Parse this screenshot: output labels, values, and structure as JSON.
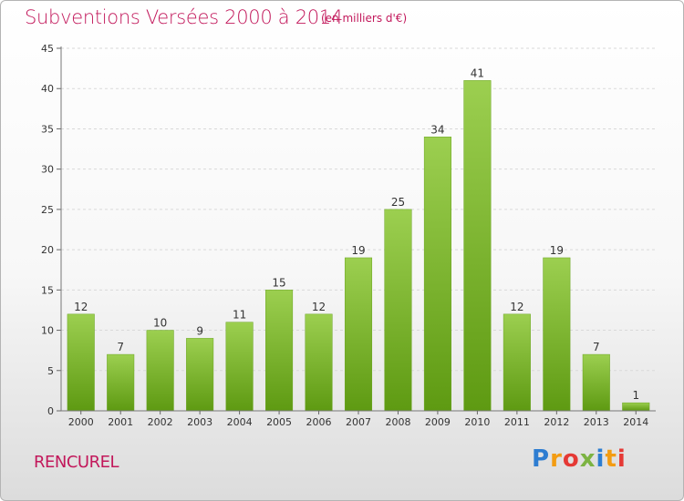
{
  "header": {
    "title": "Subventions Versées 2000 à 2014",
    "subtitle": "(en milliers d'€)"
  },
  "footer": {
    "place": "RENCUREL",
    "brand": "Proxiti",
    "brand_colors": [
      "#2e7dd1",
      "#f39c12",
      "#e53935",
      "#7cb342",
      "#2e7dd1",
      "#f39c12",
      "#e53935"
    ]
  },
  "colors": {
    "title": "#c2185b",
    "bar_top": "#9ccf50",
    "bar_bottom": "#5e9a12",
    "grid": "#d9d9d9"
  },
  "chart_data": {
    "type": "bar",
    "categories": [
      "2000",
      "2001",
      "2002",
      "2003",
      "2004",
      "2005",
      "2006",
      "2007",
      "2008",
      "2009",
      "2010",
      "2011",
      "2012",
      "2013",
      "2014"
    ],
    "values": [
      12,
      7,
      10,
      9,
      11,
      15,
      12,
      19,
      25,
      34,
      41,
      12,
      19,
      7,
      1
    ],
    "ylim": [
      0,
      45
    ],
    "yticks": [
      0,
      5,
      10,
      15,
      20,
      25,
      30,
      35,
      40,
      45
    ],
    "grid": true,
    "data_labels": true
  }
}
